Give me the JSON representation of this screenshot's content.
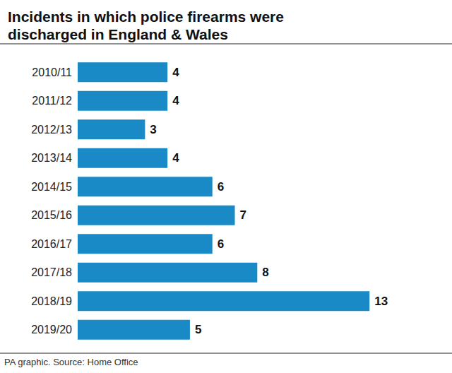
{
  "chart_data": {
    "type": "bar",
    "title": "Incidents in which police firearms were discharged in England & Wales",
    "source": "PA graphic. Source: Home Office",
    "categories": [
      "2010/11",
      "2011/12",
      "2012/13",
      "2013/14",
      "2014/15",
      "2015/16",
      "2016/17",
      "2017/18",
      "2018/19",
      "2019/20"
    ],
    "values": [
      4,
      4,
      3,
      4,
      6,
      7,
      6,
      8,
      13,
      5
    ],
    "color": "#1a8ac6",
    "orientation": "horizontal",
    "xlim": [
      0,
      14
    ],
    "data_labels": true,
    "tick_labels": "y",
    "grid": false
  }
}
